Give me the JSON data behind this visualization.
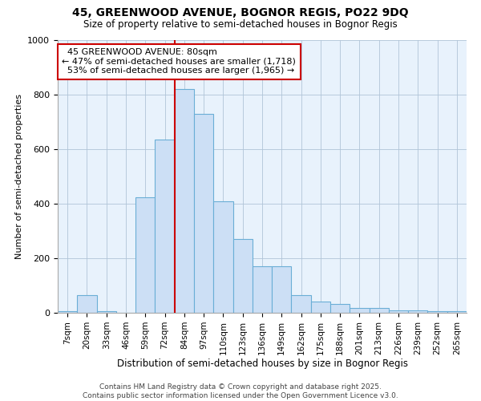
{
  "title1": "45, GREENWOOD AVENUE, BOGNOR REGIS, PO22 9DQ",
  "title2": "Size of property relative to semi-detached houses in Bognor Regis",
  "xlabel": "Distribution of semi-detached houses by size in Bognor Regis",
  "ylabel": "Number of semi-detached properties",
  "categories": [
    "7sqm",
    "20sqm",
    "33sqm",
    "46sqm",
    "59sqm",
    "72sqm",
    "84sqm",
    "97sqm",
    "110sqm",
    "123sqm",
    "136sqm",
    "149sqm",
    "162sqm",
    "175sqm",
    "188sqm",
    "201sqm",
    "213sqm",
    "226sqm",
    "239sqm",
    "252sqm",
    "265sqm"
  ],
  "values": [
    5,
    65,
    5,
    0,
    425,
    635,
    820,
    730,
    410,
    270,
    170,
    170,
    65,
    42,
    32,
    18,
    18,
    8,
    10,
    5,
    5
  ],
  "bar_color": "#ccdff5",
  "bar_edge_color": "#6aaed6",
  "property_label": "45 GREENWOOD AVENUE: 80sqm",
  "pct_smaller": 47,
  "pct_larger": 53,
  "n_smaller": 1718,
  "n_larger": 1965,
  "vline_color": "#cc0000",
  "annotation_box_color": "#cc0000",
  "background_color": "#ffffff",
  "plot_bg_color": "#e8f2fc",
  "grid_color": "#b0c4d8",
  "ylim": [
    0,
    1000
  ],
  "footer1": "Contains HM Land Registry data © Crown copyright and database right 2025.",
  "footer2": "Contains public sector information licensed under the Open Government Licence v3.0."
}
